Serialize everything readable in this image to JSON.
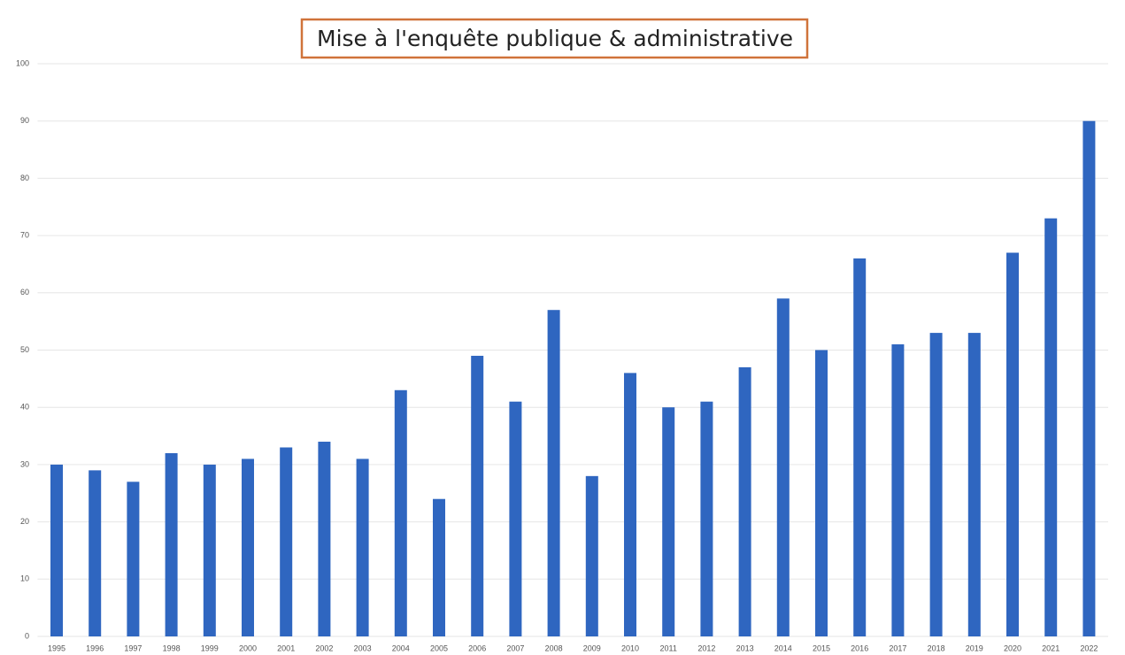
{
  "chart_data": {
    "type": "bar",
    "title": "Mise à l'enquête publique & administrative",
    "categories": [
      "1995",
      "1996",
      "1997",
      "1998",
      "1999",
      "2000",
      "2001",
      "2002",
      "2003",
      "2004",
      "2005",
      "2006",
      "2007",
      "2008",
      "2009",
      "2010",
      "2011",
      "2012",
      "2013",
      "2014",
      "2015",
      "2016",
      "2017",
      "2018",
      "2019",
      "2020",
      "2021",
      "2022"
    ],
    "values": [
      30,
      29,
      27,
      32,
      30,
      31,
      33,
      34,
      31,
      43,
      24,
      49,
      41,
      57,
      28,
      46,
      40,
      41,
      47,
      59,
      50,
      66,
      51,
      53,
      53,
      67,
      73,
      90
    ],
    "color": "#2f66c0",
    "ylim": [
      0,
      100
    ],
    "yticks": [
      0,
      10,
      20,
      30,
      40,
      50,
      60,
      70,
      80,
      90,
      100
    ],
    "grid": true
  }
}
